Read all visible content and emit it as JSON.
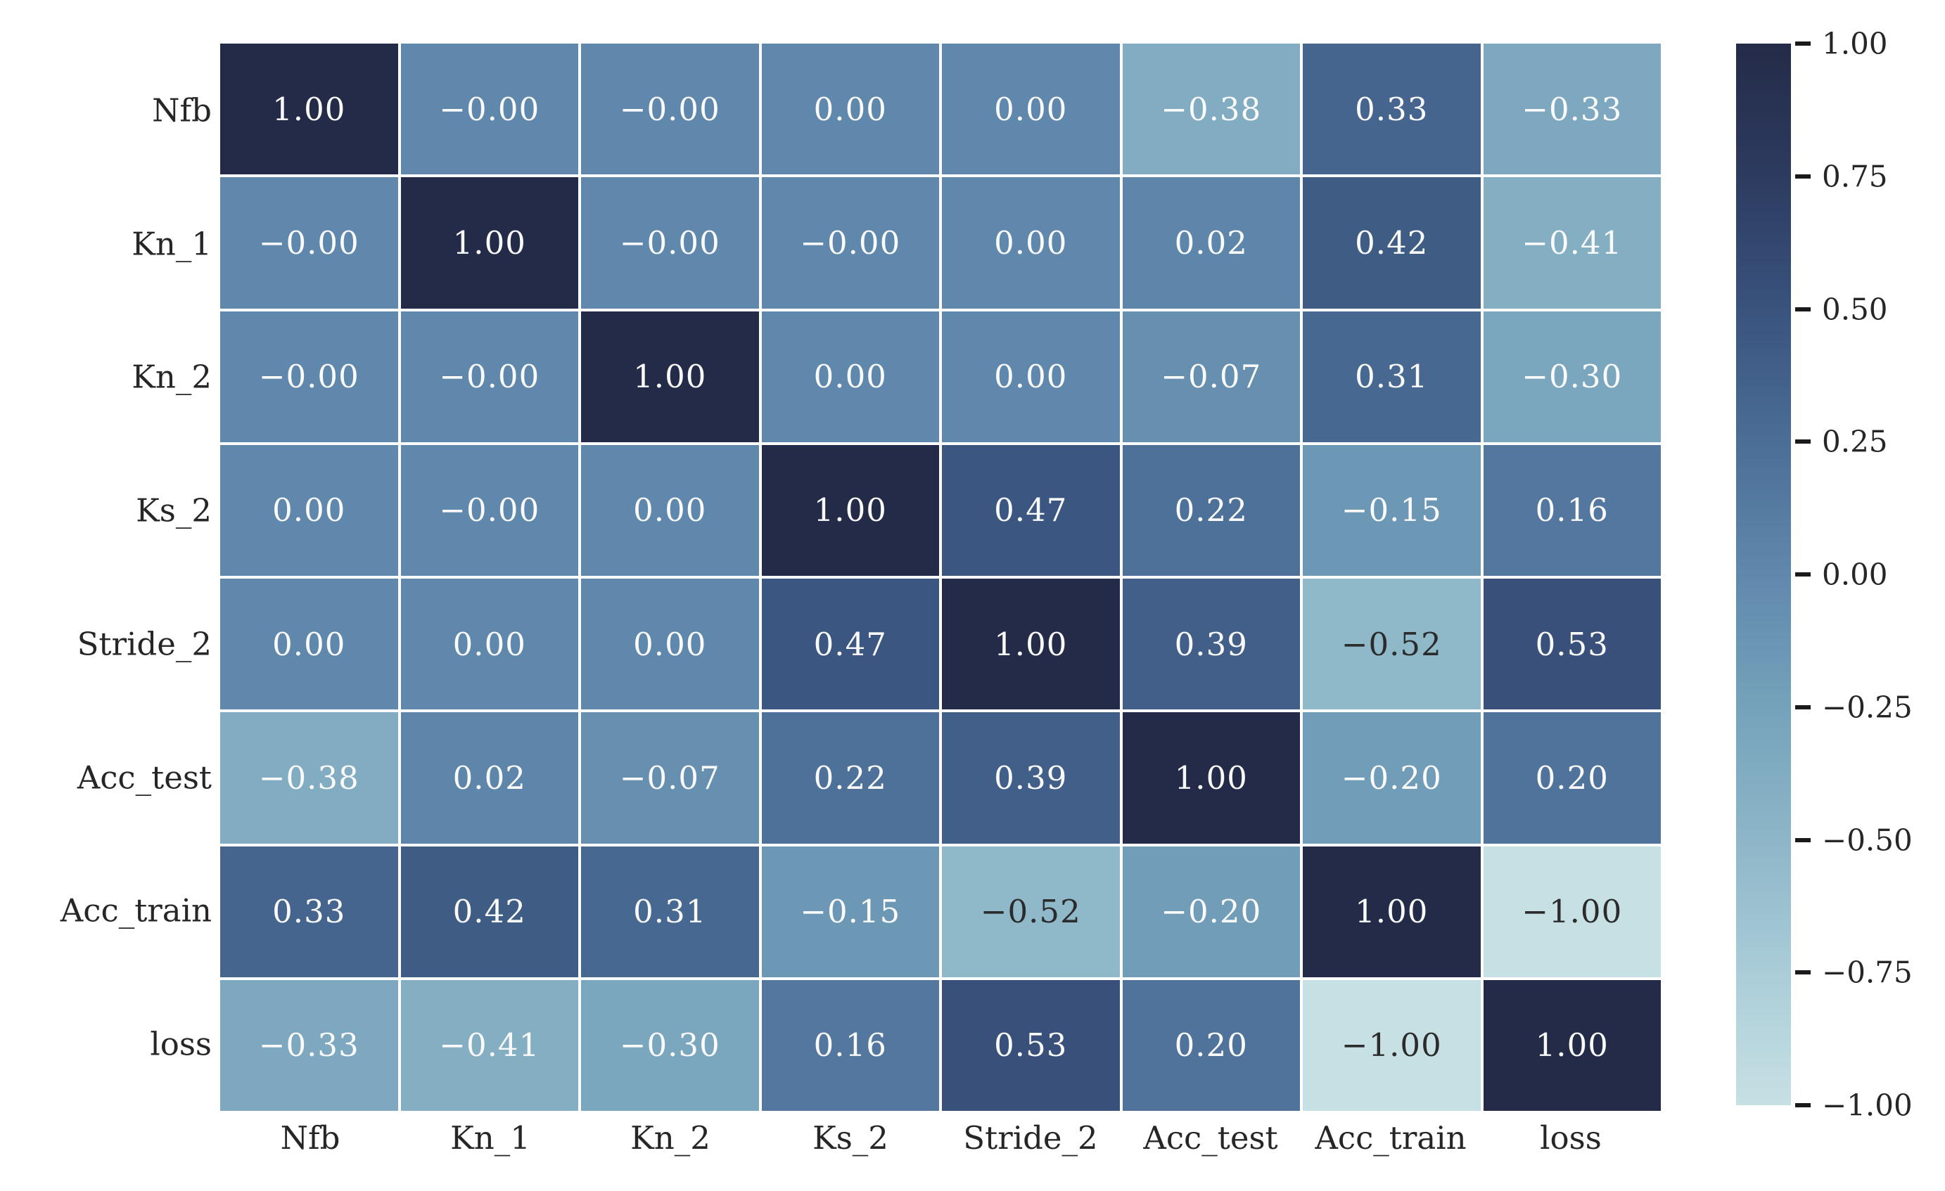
{
  "chart_data": {
    "type": "heatmap",
    "title": "",
    "row_labels": [
      "Nfb",
      "Kn_1",
      "Kn_2",
      "Ks_2",
      "Stride_2",
      "Acc_test",
      "Acc_train",
      "loss"
    ],
    "col_labels": [
      "Nfb",
      "Kn_1",
      "Kn_2",
      "Ks_2",
      "Stride_2",
      "Acc_test",
      "Acc_train",
      "loss"
    ],
    "matrix": [
      [
        "1.00",
        "-0.00",
        "-0.00",
        "0.00",
        "0.00",
        "-0.38",
        "0.33",
        "-0.33"
      ],
      [
        "-0.00",
        "1.00",
        "-0.00",
        "-0.00",
        "0.00",
        "0.02",
        "0.42",
        "-0.41"
      ],
      [
        "-0.00",
        "-0.00",
        "1.00",
        "0.00",
        "0.00",
        "-0.07",
        "0.31",
        "-0.30"
      ],
      [
        "0.00",
        "-0.00",
        "0.00",
        "1.00",
        "0.47",
        "0.22",
        "-0.15",
        "0.16"
      ],
      [
        "0.00",
        "0.00",
        "0.00",
        "0.47",
        "1.00",
        "0.39",
        "-0.52",
        "0.53"
      ],
      [
        "-0.38",
        "0.02",
        "-0.07",
        "0.22",
        "0.39",
        "1.00",
        "-0.20",
        "0.20"
      ],
      [
        "0.33",
        "0.42",
        "0.31",
        "-0.15",
        "-0.52",
        "-0.20",
        "1.00",
        "-1.00"
      ],
      [
        "-0.33",
        "-0.41",
        "-0.30",
        "0.16",
        "0.53",
        "0.20",
        "-1.00",
        "1.00"
      ]
    ],
    "value_range": [
      -1.0,
      1.0
    ],
    "colorbar_ticks": [
      "1.00",
      "0.75",
      "0.50",
      "0.25",
      "0.00",
      "-0.25",
      "-0.50",
      "-0.75",
      "-1.00"
    ],
    "colormap_stops": [
      {
        "t": 0.0,
        "color": "#c7e0e4"
      },
      {
        "t": 0.125,
        "color": "#aacdd8"
      },
      {
        "t": 0.25,
        "color": "#8db6c8"
      },
      {
        "t": 0.375,
        "color": "#75a2bb"
      },
      {
        "t": 0.5,
        "color": "#6088ac"
      },
      {
        "t": 0.625,
        "color": "#4b6e96"
      },
      {
        "t": 0.75,
        "color": "#39537d"
      },
      {
        "t": 0.875,
        "color": "#2d3b60"
      },
      {
        "t": 1.0,
        "color": "#242b48"
      }
    ],
    "annotation_text_light": "#fafafa",
    "annotation_text_dark": "#2b2b2b",
    "dark_text_when_value_at_or_below": -0.45,
    "label_color": "#262626",
    "grid_line_color": "#ffffff",
    "legend_position": "right"
  }
}
